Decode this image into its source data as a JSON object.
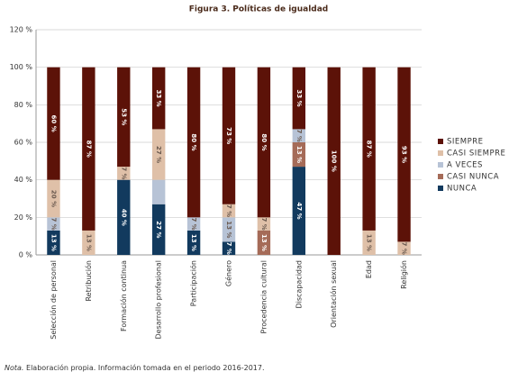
{
  "chart_data": {
    "type": "stacked-bar",
    "title": "Figura 3. Políticas de igualdad",
    "note_label": "Nota.",
    "note": "Elaboración propia. Información tomada en el periodo 2016-2017.",
    "categories": [
      "Selección de personal",
      "Retribución",
      "Formación continua",
      "Desarrollo profesional",
      "Participación",
      "Género",
      "Procedencia cultural",
      "Discapacidad",
      "Orientación sexual",
      "Edad",
      "Religión"
    ],
    "series": [
      {
        "name": "NUNCA",
        "color": "#123a5e",
        "values": [
          13,
          0,
          40,
          27,
          13,
          7,
          0,
          47,
          0,
          0,
          0
        ],
        "value_labels": [
          "13 %",
          null,
          "40 %",
          "27 %",
          "13 %",
          "7 %",
          null,
          "47 %",
          null,
          null,
          null
        ]
      },
      {
        "name": "CASI NUNCA",
        "color": "#a56b58",
        "values": [
          0,
          0,
          0,
          0,
          0,
          0,
          13,
          13,
          0,
          0,
          0
        ],
        "value_labels": [
          null,
          null,
          null,
          null,
          null,
          null,
          "13 %",
          "13 %",
          null,
          null,
          null
        ]
      },
      {
        "name": "A VECES",
        "color": "#b7c3d6",
        "values": [
          7,
          0,
          0,
          13,
          7,
          13,
          0,
          7,
          0,
          0,
          0
        ],
        "value_labels": [
          "7 %",
          null,
          null,
          null,
          "7 %",
          "13 %",
          null,
          "7 %",
          null,
          null,
          null
        ]
      },
      {
        "name": "CASI SIEMPRE",
        "color": "#dfc0a8",
        "values": [
          20,
          13,
          7,
          27,
          0,
          7,
          7,
          0,
          0,
          13,
          7
        ],
        "value_labels": [
          "20 %",
          "13 %",
          "7 %",
          "27 %",
          null,
          "7 %",
          "7 %",
          null,
          null,
          "13 %",
          "7 %"
        ]
      },
      {
        "name": "SIEMPRE",
        "color": "#5c1208",
        "values": [
          60,
          87,
          53,
          33,
          80,
          73,
          80,
          33,
          100,
          87,
          93
        ],
        "value_labels": [
          "60 %",
          "87 %",
          "53 %",
          "33 %",
          "80 %",
          "73 %",
          "80 %",
          "33 %",
          "100 %",
          "87 %",
          "93 %"
        ]
      }
    ],
    "ylim": [
      0,
      120
    ],
    "yticks": [
      {
        "value": 0,
        "label": "0 %"
      },
      {
        "value": 20,
        "label": "20 %"
      },
      {
        "value": 40,
        "label": "40 %"
      },
      {
        "value": 60,
        "label": "60 %"
      },
      {
        "value": 80,
        "label": "80 %"
      },
      {
        "value": 100,
        "label": "100 %"
      },
      {
        "value": 120,
        "label": "120 %"
      }
    ],
    "grid": true,
    "legend": "right"
  }
}
